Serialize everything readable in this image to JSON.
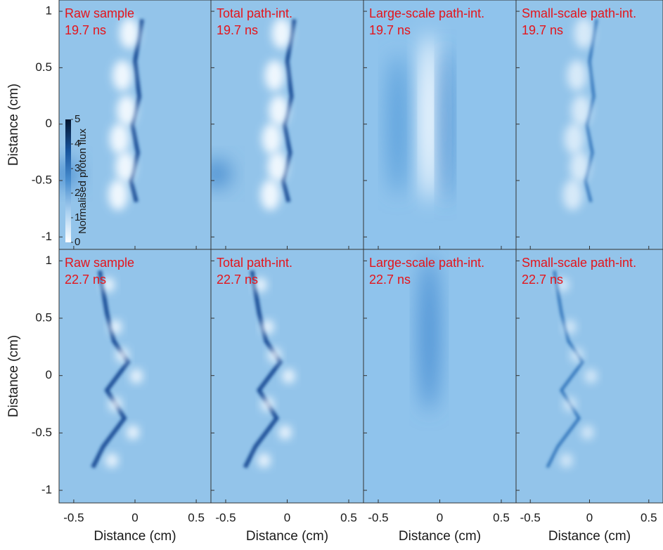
{
  "figure": {
    "x_label": "Distance (cm)",
    "y_label": "Distance (cm)",
    "xlim": [
      -0.62,
      0.62
    ],
    "ylim": [
      -1.11,
      1.1
    ],
    "xticks": [
      -0.5,
      0,
      0.5
    ],
    "yticks": [
      -1,
      -0.5,
      0,
      0.5,
      1
    ],
    "colorbar": {
      "label": "Normalised proton flux",
      "lim": [
        0,
        5
      ],
      "ticks": [
        0,
        1,
        2,
        3,
        4,
        5
      ]
    },
    "panels": [
      {
        "title": "Raw sample",
        "time": "19.7 ns"
      },
      {
        "title": "Total path-int.",
        "time": "19.7 ns"
      },
      {
        "title": "Large-scale path-int.",
        "time": "19.7 ns"
      },
      {
        "title": "Small-scale path-int.",
        "time": "19.7 ns"
      },
      {
        "title": "Raw sample",
        "time": "22.7 ns"
      },
      {
        "title": "Total path-int.",
        "time": "22.7 ns"
      },
      {
        "title": "Large-scale path-int.",
        "time": "22.7 ns"
      },
      {
        "title": "Small-scale path-int.",
        "time": "22.7 ns"
      }
    ]
  }
}
